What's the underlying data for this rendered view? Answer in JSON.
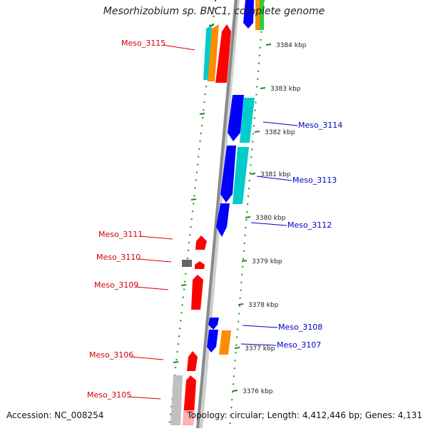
{
  "title": "Mesorhizobium sp. BNC1, complete genome",
  "footer": {
    "accession": "Accession: NC_008254",
    "summary": "Topology: circular; Length: 4,412,446 bp; Genes: 4,131"
  },
  "colors": {
    "left_label": "#d40000",
    "right_label": "#0000c0",
    "backbone": "#8a8a8a",
    "ring": "#1c8a1c",
    "red": "#ff0000",
    "blue": "#0000ff",
    "cyan": "#00cccc",
    "orange": "#ff8c00",
    "gray": "#c0c0c0",
    "darkgray": "#666666",
    "green": "#33cc33"
  },
  "scale": [
    {
      "label": "3384 kbp"
    },
    {
      "label": "3383 kbp"
    },
    {
      "label": "3382 kbp"
    },
    {
      "label": "3381 kbp"
    },
    {
      "label": "3380 kbp"
    },
    {
      "label": "3379 kbp"
    },
    {
      "label": "3378 kbp"
    },
    {
      "label": "3377 kbp"
    },
    {
      "label": "3376 kbp"
    }
  ],
  "left_labels": [
    {
      "label": "Meso_3115"
    },
    {
      "label": "Meso_3111"
    },
    {
      "label": "Meso_3110"
    },
    {
      "label": "Meso_3109"
    },
    {
      "label": "Meso_3106"
    },
    {
      "label": "Meso_3105"
    }
  ],
  "right_labels": [
    {
      "label": "Meso_3114"
    },
    {
      "label": "Meso_3113"
    },
    {
      "label": "Meso_3112"
    },
    {
      "label": "Meso_3108"
    },
    {
      "label": "Meso_3107"
    }
  ]
}
